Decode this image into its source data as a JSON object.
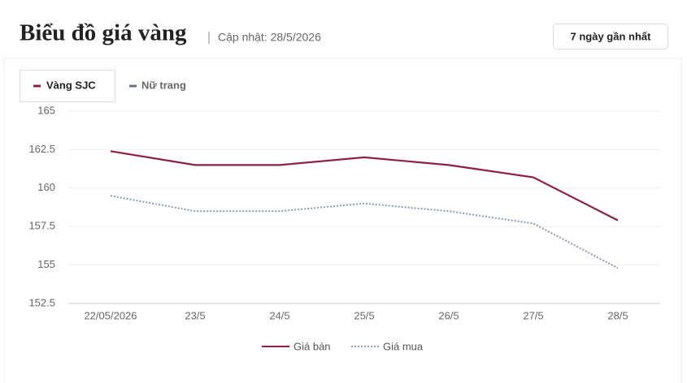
{
  "header": {
    "title": "Biểu đồ giá vàng",
    "updated": "Cập nhật: 28/5/2026",
    "button": "7 ngày gần nhất"
  },
  "tabs": [
    "Vàng SJC",
    "Nữ trang"
  ],
  "chart_data": {
    "type": "line",
    "categories": [
      "22/05/2026",
      "23/5",
      "24/5",
      "25/5",
      "26/5",
      "27/5",
      "28/5"
    ],
    "series": [
      {
        "name": "Giá bán",
        "color": "#8e1f45",
        "style": "solid",
        "values": [
          162.4,
          161.5,
          161.5,
          162.0,
          161.5,
          160.7,
          157.9
        ]
      },
      {
        "name": "Giá mua",
        "color": "#8a9ab0",
        "style": "dotted",
        "values": [
          159.5,
          158.5,
          158.5,
          159.0,
          158.5,
          157.7,
          154.8
        ]
      }
    ],
    "ylim": [
      152.5,
      165
    ],
    "yticks": [
      152.5,
      155,
      157.5,
      160,
      162.5,
      165
    ],
    "grid": true
  }
}
